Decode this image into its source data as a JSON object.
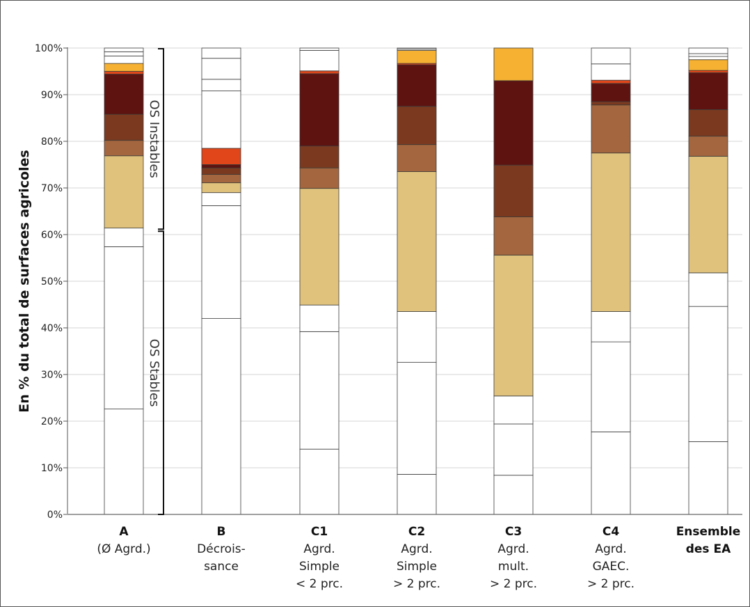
{
  "chart_data": {
    "type": "bar",
    "stacked": true,
    "ylabel": "En % du total de surfaces agricoles",
    "ylim": [
      0,
      100
    ],
    "yticks": [
      "0%",
      "10%",
      "20%",
      "30%",
      "40%",
      "50%",
      "60%",
      "70%",
      "80%",
      "90%",
      "100%"
    ],
    "grid": true,
    "categories": [
      {
        "code": "A",
        "lines": [
          "(Ø Agrd.)"
        ]
      },
      {
        "code": "B",
        "lines": [
          "Décrois-",
          "sance"
        ]
      },
      {
        "code": "C1",
        "lines": [
          "Agrd.",
          "Simple",
          "< 2 prc."
        ]
      },
      {
        "code": "C2",
        "lines": [
          "Agrd.",
          "Simple",
          "> 2 prc."
        ]
      },
      {
        "code": "C3",
        "lines": [
          "Agrd.",
          "mult.",
          "> 2 prc."
        ]
      },
      {
        "code": "C4",
        "lines": [
          "Agrd.",
          "GAEC.",
          "> 2 prc."
        ]
      },
      {
        "code": "Ensemble",
        "lines": [
          "des EA"
        ]
      }
    ],
    "series_colors": [
      "#ffffff",
      "#e0c27c",
      "#a3663e",
      "#7b3a20",
      "#5f1310",
      "#e0461a",
      "#f6b132"
    ],
    "stacks": [
      [
        [
          22.6,
          "#ffffff"
        ],
        [
          34.8,
          "#ffffff"
        ],
        [
          4,
          "#ffffff"
        ],
        [
          15.5,
          "#e0c27c"
        ],
        [
          3.3,
          "#a3663e"
        ],
        [
          5.6,
          "#7b3a20"
        ],
        [
          8.6,
          "#5f1310"
        ],
        [
          0.6,
          "#e0461a"
        ],
        [
          1.7,
          "#f6b132"
        ],
        [
          1.6,
          "#ffffff"
        ],
        [
          0.9,
          "#ffffff"
        ],
        [
          0.8,
          "#ffffff"
        ]
      ],
      [
        [
          42,
          "#ffffff"
        ],
        [
          24.2,
          "#ffffff"
        ],
        [
          2.8,
          "#ffffff"
        ],
        [
          2.1,
          "#e0c27c"
        ],
        [
          1.8,
          "#a3663e"
        ],
        [
          1.4,
          "#7b3a20"
        ],
        [
          0.7,
          "#5f1310"
        ],
        [
          3.5,
          "#e0461a"
        ],
        [
          12.3,
          "#ffffff"
        ],
        [
          2.5,
          "#ffffff"
        ],
        [
          4.5,
          "#ffffff"
        ],
        [
          2.2,
          "#ffffff"
        ]
      ],
      [
        [
          14,
          "#ffffff"
        ],
        [
          25.2,
          "#ffffff"
        ],
        [
          5.7,
          "#ffffff"
        ],
        [
          25,
          "#e0c27c"
        ],
        [
          4.4,
          "#a3663e"
        ],
        [
          4.7,
          "#7b3a20"
        ],
        [
          15.5,
          "#5f1310"
        ],
        [
          0.6,
          "#e0461a"
        ],
        [
          4.4,
          "#ffffff"
        ],
        [
          0.5,
          "#ffffff"
        ]
      ],
      [
        [
          8.6,
          "#ffffff"
        ],
        [
          24,
          "#ffffff"
        ],
        [
          10.9,
          "#ffffff"
        ],
        [
          30,
          "#e0c27c"
        ],
        [
          5.8,
          "#a3663e"
        ],
        [
          8.2,
          "#7b3a20"
        ],
        [
          8.9,
          "#5f1310"
        ],
        [
          0.3,
          "#e0461a"
        ],
        [
          2.8,
          "#f6b132"
        ],
        [
          0.3,
          "#ffffff"
        ],
        [
          0.2,
          "#ffffff"
        ]
      ],
      [
        [
          8.4,
          "#ffffff"
        ],
        [
          11,
          "#ffffff"
        ],
        [
          6,
          "#ffffff"
        ],
        [
          30.2,
          "#e0c27c"
        ],
        [
          8.2,
          "#a3663e"
        ],
        [
          11.1,
          "#7b3a20"
        ],
        [
          18.1,
          "#5f1310"
        ],
        [
          7,
          "#f6b132"
        ]
      ],
      [
        [
          17.7,
          "#ffffff"
        ],
        [
          19.3,
          "#ffffff"
        ],
        [
          6.5,
          "#ffffff"
        ],
        [
          34,
          "#e0c27c"
        ],
        [
          10.3,
          "#a3663e"
        ],
        [
          0.7,
          "#7b3a20"
        ],
        [
          3.9,
          "#5f1310"
        ],
        [
          0.7,
          "#e0461a"
        ],
        [
          3.5,
          "#ffffff"
        ],
        [
          3.4,
          "#ffffff"
        ]
      ],
      [
        [
          15.6,
          "#ffffff"
        ],
        [
          29,
          "#ffffff"
        ],
        [
          7.2,
          "#ffffff"
        ],
        [
          25,
          "#e0c27c"
        ],
        [
          4.3,
          "#a3663e"
        ],
        [
          5.7,
          "#7b3a20"
        ],
        [
          7.9,
          "#5f1310"
        ],
        [
          0.5,
          "#e0461a"
        ],
        [
          2.3,
          "#f6b132"
        ],
        [
          0.7,
          "#ffffff"
        ],
        [
          0.6,
          "#ffffff"
        ],
        [
          1.2,
          "#ffffff"
        ]
      ]
    ],
    "annotations": [
      {
        "text": "OS Instables",
        "range": [
          61,
          100
        ]
      },
      {
        "text": "OS Stables",
        "range": [
          0,
          61
        ]
      }
    ]
  }
}
